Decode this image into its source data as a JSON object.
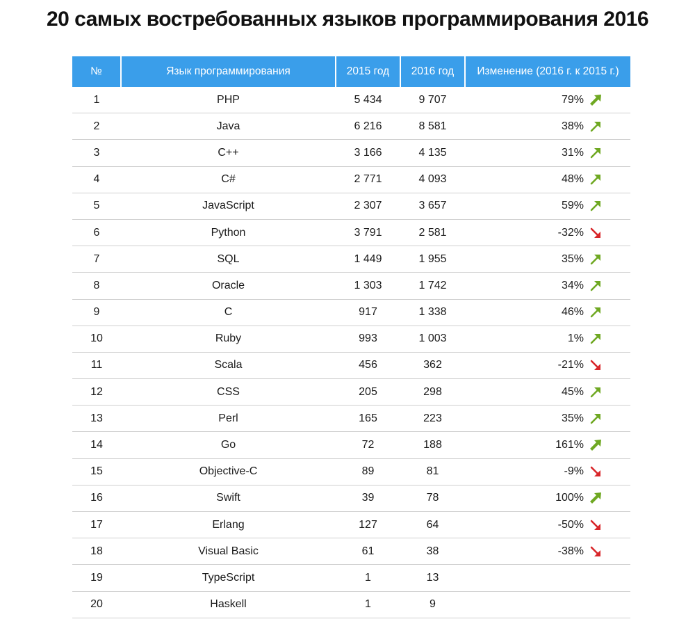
{
  "title": "20 самых востребованных языков программирования 2016",
  "colors": {
    "header_bg": "#3a9eea",
    "up": "#6fa822",
    "down": "#d8262a"
  },
  "chart_data": {
    "type": "table",
    "title": "20 самых востребованных языков программирования 2016",
    "columns": [
      "№",
      "Язык программирования",
      "2015 год",
      "2016 год",
      "Изменение (2016 г. к 2015 г.)"
    ],
    "rows": [
      {
        "rank": "1",
        "language": "PHP",
        "y2015": "5 434",
        "y2016": "9 707",
        "change": "79%",
        "trend": "up-big"
      },
      {
        "rank": "2",
        "language": "Java",
        "y2015": "6 216",
        "y2016": "8 581",
        "change": "38%",
        "trend": "up"
      },
      {
        "rank": "3",
        "language": "C++",
        "y2015": "3 166",
        "y2016": "4 135",
        "change": "31%",
        "trend": "up"
      },
      {
        "rank": "4",
        "language": "C#",
        "y2015": "2 771",
        "y2016": "4 093",
        "change": "48%",
        "trend": "up"
      },
      {
        "rank": "5",
        "language": "JavaScript",
        "y2015": "2 307",
        "y2016": "3 657",
        "change": "59%",
        "trend": "up"
      },
      {
        "rank": "6",
        "language": "Python",
        "y2015": "3 791",
        "y2016": "2 581",
        "change": "-32%",
        "trend": "down"
      },
      {
        "rank": "7",
        "language": "SQL",
        "y2015": "1 449",
        "y2016": "1 955",
        "change": "35%",
        "trend": "up"
      },
      {
        "rank": "8",
        "language": "Oracle",
        "y2015": "1 303",
        "y2016": "1 742",
        "change": "34%",
        "trend": "up"
      },
      {
        "rank": "9",
        "language": "C",
        "y2015": "917",
        "y2016": "1 338",
        "change": "46%",
        "trend": "up"
      },
      {
        "rank": "10",
        "language": "Ruby",
        "y2015": "993",
        "y2016": "1 003",
        "change": "1%",
        "trend": "up"
      },
      {
        "rank": "11",
        "language": "Scala",
        "y2015": "456",
        "y2016": "362",
        "change": "-21%",
        "trend": "down"
      },
      {
        "rank": "12",
        "language": "CSS",
        "y2015": "205",
        "y2016": "298",
        "change": "45%",
        "trend": "up"
      },
      {
        "rank": "13",
        "language": "Perl",
        "y2015": "165",
        "y2016": "223",
        "change": "35%",
        "trend": "up"
      },
      {
        "rank": "14",
        "language": "Go",
        "y2015": "72",
        "y2016": "188",
        "change": "161%",
        "trend": "up-big"
      },
      {
        "rank": "15",
        "language": "Objective-C",
        "y2015": "89",
        "y2016": "81",
        "change": "-9%",
        "trend": "down"
      },
      {
        "rank": "16",
        "language": "Swift",
        "y2015": "39",
        "y2016": "78",
        "change": "100%",
        "trend": "up-big"
      },
      {
        "rank": "17",
        "language": "Erlang",
        "y2015": "127",
        "y2016": "64",
        "change": "-50%",
        "trend": "down"
      },
      {
        "rank": "18",
        "language": "Visual Basic",
        "y2015": "61",
        "y2016": "38",
        "change": "-38%",
        "trend": "down"
      },
      {
        "rank": "19",
        "language": "TypeScript",
        "y2015": "1",
        "y2016": "13",
        "change": "",
        "trend": "none"
      },
      {
        "rank": "20",
        "language": "Haskell",
        "y2015": "1",
        "y2016": "9",
        "change": "",
        "trend": "none"
      }
    ]
  }
}
